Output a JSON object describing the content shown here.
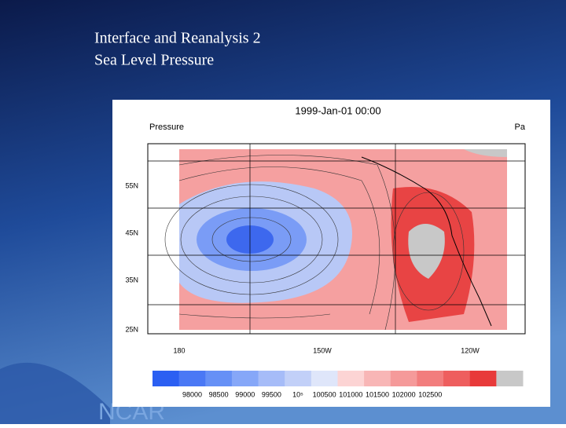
{
  "slide": {
    "title_lines": [
      "Interface and Reanalysis 2",
      "Sea Level Pressure"
    ],
    "footer_logo": "NCAR"
  },
  "map": {
    "title": "1999-Jan-01 00:00",
    "left_label": "Pressure",
    "right_label": "Pa",
    "lat_labels": [
      "55N",
      "45N",
      "35N",
      "25N"
    ],
    "lon_labels": [
      "180",
      "150W",
      "120W"
    ],
    "colorbar": {
      "colors": [
        "#2b5ff2",
        "#4a78f5",
        "#6690f6",
        "#86a7f8",
        "#a6bcf8",
        "#c2d0f8",
        "#dfe6fa",
        "#fcd4d4",
        "#f8b6b6",
        "#f59a9a",
        "#f27d7d",
        "#ee5e5e",
        "#e83a3a",
        "#c8c8c8"
      ],
      "labels": [
        "98000",
        "98500",
        "99000",
        "99500",
        "10⁵",
        "100500",
        "101000",
        "101500",
        "102000",
        "102500"
      ]
    }
  }
}
